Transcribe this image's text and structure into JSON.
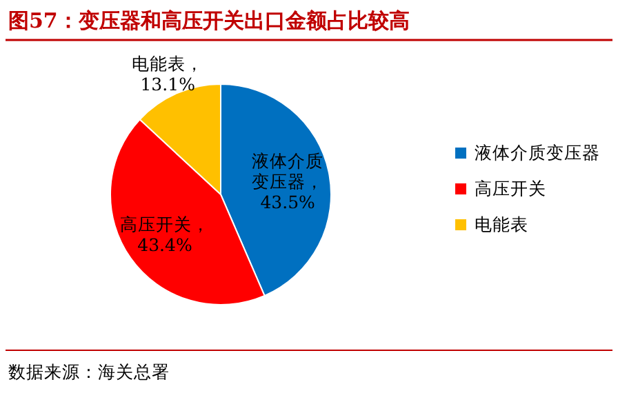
{
  "chart_data": {
    "type": "pie",
    "title": "图57：变压器和高压开关出口金额占比较高",
    "categories": [
      "液体介质变压器",
      "高压开关",
      "电能表"
    ],
    "values": [
      43.5,
      43.4,
      13.1
    ],
    "colors": [
      "#0070c0",
      "#ff0000",
      "#ffc000"
    ],
    "value_labels": [
      "液体介质变压器，43.5%",
      "高压开关，43.4%",
      "电能表，13.1%"
    ],
    "legend": "right",
    "annotations": [
      "数据来源：海关总署"
    ]
  }
}
